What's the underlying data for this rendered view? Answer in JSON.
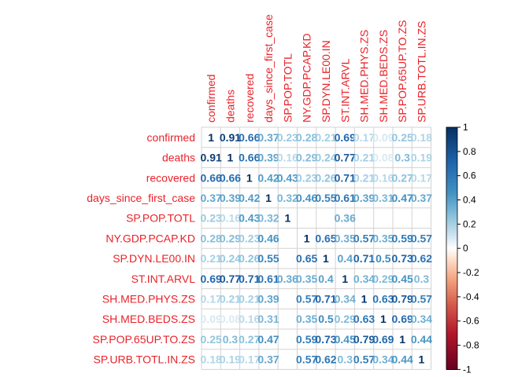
{
  "chart_data": {
    "type": "heatmap",
    "title": "",
    "variables": [
      "confirmed",
      "deaths",
      "recovered",
      "days_since_first_case",
      "SP.POP.TOTL",
      "NY.GDP.PCAP.KD",
      "SP.DYN.LE00.IN",
      "ST.INT.ARVL",
      "SH.MED.PHYS.ZS",
      "SH.MED.BEDS.ZS",
      "SP.POP.65UP.TO.ZS",
      "SP.URB.TOTL.IN.ZS"
    ],
    "matrix": [
      [
        1,
        0.91,
        0.66,
        0.37,
        0.23,
        0.28,
        0.21,
        0.69,
        0.17,
        0.09,
        0.25,
        0.18
      ],
      [
        0.91,
        1,
        0.66,
        0.39,
        0.16,
        0.29,
        0.24,
        0.77,
        0.21,
        0.08,
        0.3,
        0.19
      ],
      [
        0.66,
        0.66,
        1,
        0.42,
        0.43,
        0.23,
        0.26,
        0.71,
        0.21,
        0.16,
        0.27,
        0.17
      ],
      [
        0.37,
        0.39,
        0.42,
        1,
        0.32,
        0.46,
        0.55,
        0.61,
        0.39,
        0.31,
        0.47,
        0.37
      ],
      [
        0.23,
        0.16,
        0.43,
        0.32,
        1,
        0.04,
        0.02,
        0.36,
        0.02,
        0.02,
        0.02,
        0.04
      ],
      [
        0.28,
        0.29,
        0.23,
        0.46,
        0.04,
        1,
        0.65,
        0.35,
        0.57,
        0.35,
        0.59,
        0.57
      ],
      [
        0.21,
        0.24,
        0.26,
        0.55,
        0.02,
        0.65,
        1,
        0.4,
        0.71,
        0.5,
        0.73,
        0.62
      ],
      [
        0.69,
        0.77,
        0.71,
        0.61,
        0.36,
        0.35,
        0.4,
        1,
        0.34,
        0.29,
        0.45,
        0.3
      ],
      [
        0.17,
        0.21,
        0.21,
        0.39,
        0.02,
        0.57,
        0.71,
        0.34,
        1,
        0.63,
        0.79,
        0.57
      ],
      [
        0.09,
        0.08,
        0.16,
        0.31,
        0.02,
        0.35,
        0.5,
        0.29,
        0.63,
        1,
        0.69,
        0.34
      ],
      [
        0.25,
        0.3,
        0.27,
        0.47,
        0.02,
        0.59,
        0.73,
        0.45,
        0.79,
        0.69,
        1,
        0.44
      ],
      [
        0.18,
        0.19,
        0.17,
        0.37,
        0.04,
        0.57,
        0.62,
        0.3,
        0.57,
        0.34,
        0.44,
        1
      ]
    ],
    "value_labels": [
      [
        "1",
        "0.91",
        "0.66",
        "0.37",
        "0.23",
        "0.28",
        "0.21",
        "0.69",
        "0.17",
        "0.09",
        "0.25",
        "0.18"
      ],
      [
        "0.91",
        "1",
        "0.66",
        "0.39",
        "0.16",
        "0.29",
        "0.24",
        "0.77",
        "0.21",
        "0.08",
        "0.3",
        "0.19"
      ],
      [
        "0.66",
        "0.66",
        "1",
        "0.42",
        "0.43",
        "0.23",
        "0.26",
        "0.71",
        "0.21",
        "0.16",
        "0.27",
        "0.17"
      ],
      [
        "0.37",
        "0.39",
        "0.42",
        "1",
        "0.32",
        "0.46",
        "0.55",
        "0.61",
        "0.39",
        "0.31",
        "0.47",
        "0.37"
      ],
      [
        "0.23",
        "0.16",
        "0.43",
        "0.32",
        "1",
        "",
        "",
        "0.36",
        "",
        "",
        "",
        ""
      ],
      [
        "0.28",
        "0.29",
        "0.23",
        "0.46",
        "",
        "1",
        "0.65",
        "0.35",
        "0.57",
        "0.35",
        "0.59",
        "0.57"
      ],
      [
        "0.21",
        "0.24",
        "0.26",
        "0.55",
        "",
        "0.65",
        "1",
        "0.4",
        "0.71",
        "0.5",
        "0.73",
        "0.62"
      ],
      [
        "0.69",
        "0.77",
        "0.71",
        "0.61",
        "0.36",
        "0.35",
        "0.4",
        "1",
        "0.34",
        "0.29",
        "0.45",
        "0.3"
      ],
      [
        "0.17",
        "0.21",
        "0.21",
        "0.39",
        "",
        "0.57",
        "0.71",
        "0.34",
        "1",
        "0.63",
        "0.79",
        "0.57"
      ],
      [
        "0.09",
        "0.08",
        "0.16",
        "0.31",
        "",
        "0.35",
        "0.5",
        "0.29",
        "0.63",
        "1",
        "0.69",
        "0.34"
      ],
      [
        "0.25",
        "0.3",
        "0.27",
        "0.47",
        "",
        "0.59",
        "0.73",
        "0.45",
        "0.79",
        "0.69",
        "1",
        "0.44"
      ],
      [
        "0.18",
        "0.19",
        "0.17",
        "0.37",
        "",
        "0.57",
        "0.62",
        "0.3",
        "0.57",
        "0.34",
        "0.44",
        "1"
      ]
    ],
    "colorbar": {
      "range": [
        -1,
        1
      ],
      "ticks": [
        "1",
        "0.8",
        "0.6",
        "0.4",
        "0.2",
        "0",
        "-0.2",
        "-0.4",
        "-0.6",
        "-0.8",
        "-1"
      ],
      "negative_color": "#67001f",
      "neutral_color": "#ffffff",
      "positive_color": "#053061"
    },
    "label_color": "#e8232a",
    "grid_color": "#d3d3d3",
    "legend_position": "right"
  }
}
